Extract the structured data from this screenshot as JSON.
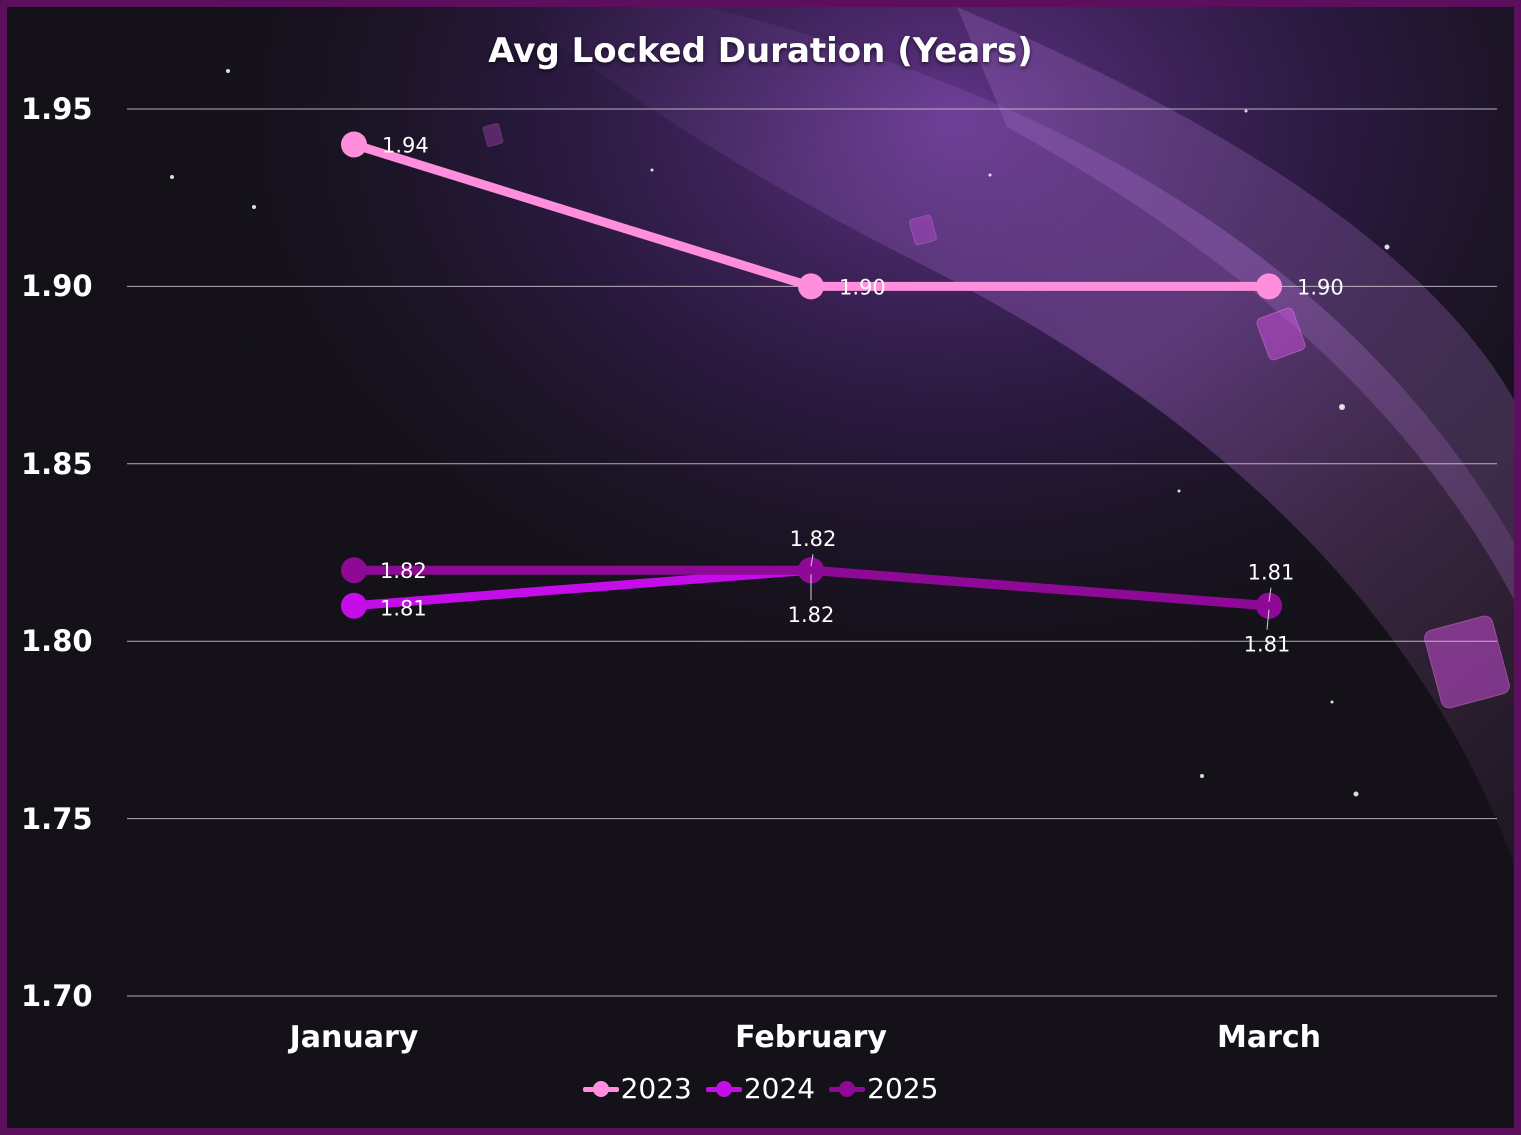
{
  "chart_data": {
    "type": "line",
    "title": "Avg Locked Duration (Years)",
    "categories": [
      "January",
      "February",
      "March"
    ],
    "series": [
      {
        "name": "2023",
        "values": [
          1.94,
          1.9,
          1.9
        ],
        "color": "#ff8fdc"
      },
      {
        "name": "2024",
        "values": [
          1.81,
          1.82,
          1.81
        ],
        "color": "#c40de8"
      },
      {
        "name": "2025",
        "values": [
          1.82,
          1.82,
          1.81
        ],
        "color": "#8e0a96"
      }
    ],
    "ylim": [
      1.7,
      1.95
    ],
    "yticks": [
      "1.70",
      "1.75",
      "1.80",
      "1.85",
      "1.90",
      "1.95"
    ],
    "data_labels": {
      "2023": [
        "1.94",
        "1.90",
        "1.90"
      ],
      "2024": [
        "1.81",
        "1.82",
        "1.81"
      ],
      "2025": [
        "1.82",
        "1.82",
        "1.81"
      ]
    },
    "grid": true,
    "legend_position": "bottom"
  },
  "colors": {
    "background": "#141118",
    "frame": "#5b0f5c",
    "gridline": "#cfc8d6"
  }
}
